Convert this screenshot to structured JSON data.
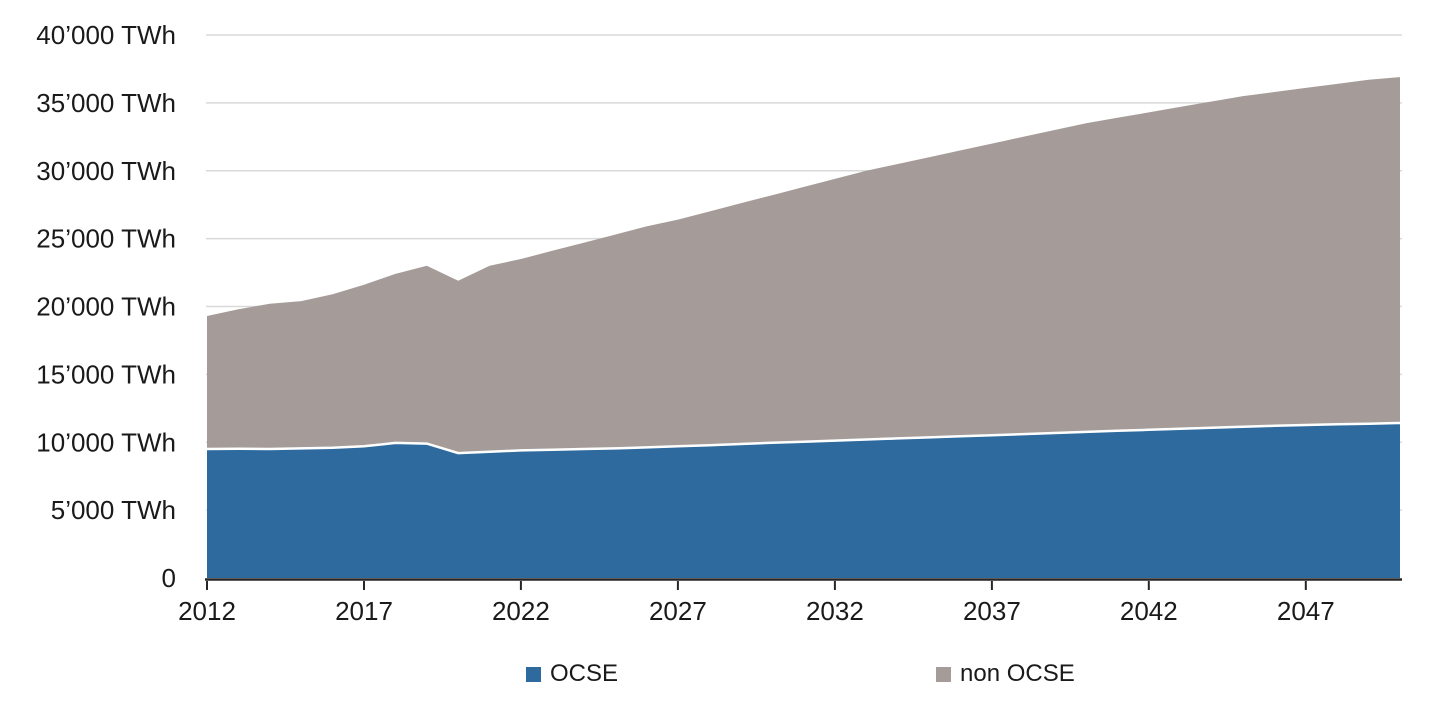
{
  "chart_data": {
    "type": "area",
    "stacked": true,
    "title": "",
    "xlabel": "",
    "ylabel": "TWh",
    "xlim": [
      2012,
      2050
    ],
    "ylim": [
      0,
      40000
    ],
    "grid": true,
    "legend_position": "bottom",
    "x": [
      2012,
      2013,
      2014,
      2015,
      2016,
      2017,
      2018,
      2019,
      2020,
      2021,
      2022,
      2023,
      2024,
      2025,
      2026,
      2027,
      2028,
      2029,
      2030,
      2031,
      2032,
      2033,
      2034,
      2035,
      2036,
      2037,
      2038,
      2039,
      2040,
      2041,
      2042,
      2043,
      2044,
      2045,
      2046,
      2047,
      2048,
      2049,
      2050
    ],
    "x_ticks": [
      2012,
      2017,
      2022,
      2027,
      2032,
      2037,
      2042,
      2047
    ],
    "y_ticks": [
      {
        "value": 0,
        "label": "0"
      },
      {
        "value": 5000,
        "label": "5’000 TWh"
      },
      {
        "value": 10000,
        "label": "10’000 TWh"
      },
      {
        "value": 15000,
        "label": "15’000 TWh"
      },
      {
        "value": 20000,
        "label": "20’000 TWh"
      },
      {
        "value": 25000,
        "label": "25’000 TWh"
      },
      {
        "value": 30000,
        "label": "30’000 TWh"
      },
      {
        "value": 35000,
        "label": "35’000 TWh"
      },
      {
        "value": 40000,
        "label": "40’000 TWh"
      }
    ],
    "series": [
      {
        "name": "OCSE",
        "color": "#2e6a9e",
        "values": [
          9500,
          9520,
          9500,
          9550,
          9600,
          9700,
          9950,
          9900,
          9200,
          9300,
          9400,
          9450,
          9500,
          9550,
          9620,
          9700,
          9780,
          9870,
          9960,
          10040,
          10120,
          10200,
          10280,
          10360,
          10440,
          10520,
          10600,
          10680,
          10760,
          10840,
          10920,
          11000,
          11070,
          11140,
          11210,
          11270,
          11320,
          11370,
          11420
        ]
      },
      {
        "name": "non OCSE",
        "color": "#a59c9a",
        "values": [
          9800,
          10280,
          10700,
          10850,
          11300,
          11900,
          12450,
          13100,
          12700,
          13700,
          14100,
          14650,
          15200,
          15750,
          16280,
          16700,
          17220,
          17730,
          18240,
          18760,
          19280,
          19800,
          20220,
          20640,
          21060,
          21480,
          21900,
          22320,
          22740,
          23060,
          23380,
          23700,
          24030,
          24360,
          24590,
          24830,
          25080,
          25330,
          25480
        ]
      }
    ],
    "separator_line_color": "#ffffff",
    "gridline_color": "#d9d9d9",
    "axis_color": "#262626",
    "text_color": "#1a1a1a"
  }
}
